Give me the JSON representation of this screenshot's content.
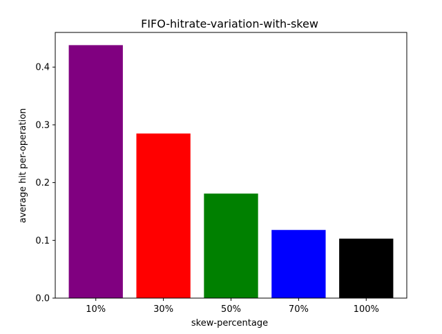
{
  "chart_data": {
    "type": "bar",
    "title": "FIFO-hitrate-variation-with-skew",
    "xlabel": "skew-percentage",
    "ylabel": "average hit per-operation",
    "categories": [
      "10%",
      "30%",
      "50%",
      "70%",
      "100%"
    ],
    "values": [
      0.438,
      0.285,
      0.181,
      0.118,
      0.103
    ],
    "bar_colors": [
      "#800080",
      "#ff0000",
      "#008000",
      "#0000ff",
      "#000000"
    ],
    "ylim": [
      0,
      0.46
    ],
    "yticks": [
      0.0,
      0.1,
      0.2,
      0.3,
      0.4
    ],
    "ytick_labels": [
      "0.0",
      "0.1",
      "0.2",
      "0.3",
      "0.4"
    ],
    "grid": false,
    "legend": false
  }
}
